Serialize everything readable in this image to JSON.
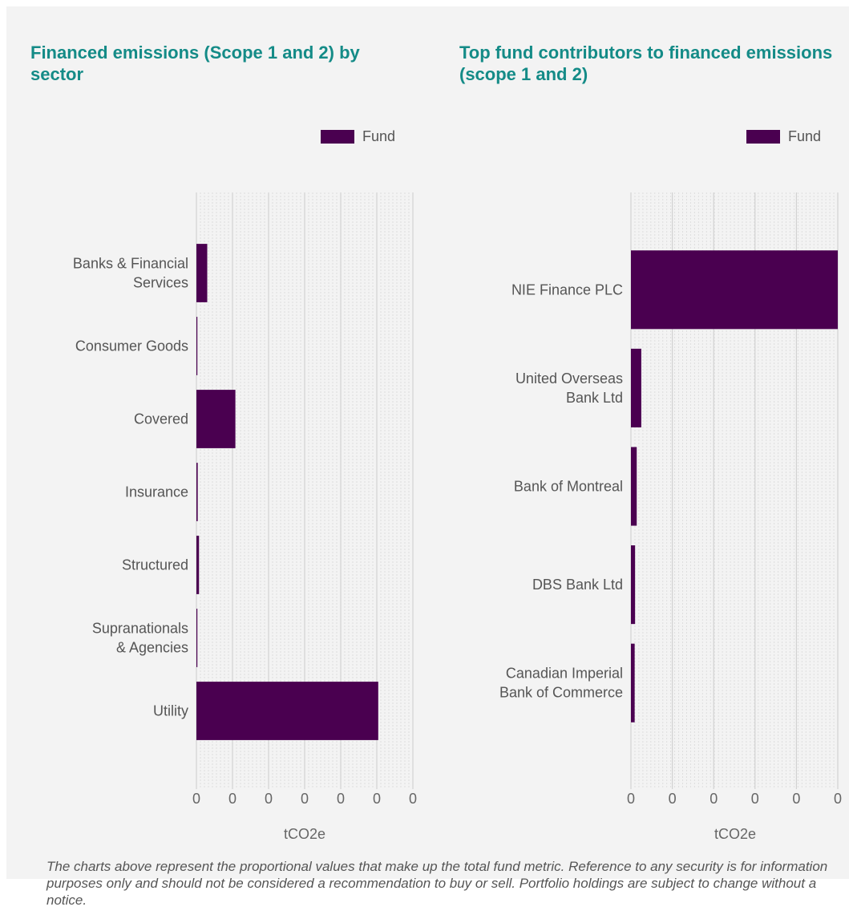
{
  "colors": {
    "fund": "#4a0050",
    "title": "#148b87",
    "panel_bg": "#f3f3f3",
    "grid": "#dedede"
  },
  "footnote": "The charts above represent the proportional values that make up the total fund metric. Reference to any security is for information purposes only and should not be considered a recommendation to buy or sell. Portfolio holdings are subject to change without a notice.",
  "chart_data": [
    {
      "type": "bar",
      "orientation": "horizontal",
      "title": "Financed emissions (Scope 1 and 2) by sector",
      "legend": [
        "Fund"
      ],
      "legend_position": "top-right",
      "categories": [
        [
          "Banks & Financial",
          "Services"
        ],
        [
          "Consumer Goods"
        ],
        [
          "Covered"
        ],
        [
          "Insurance"
        ],
        [
          "Structured"
        ],
        [
          "Supranationals",
          "& Agencies"
        ],
        [
          "Utility"
        ]
      ],
      "series": [
        {
          "name": "Fund",
          "values": [
            0.05,
            0.002,
            0.18,
            0.006,
            0.012,
            0.003,
            0.84
          ]
        }
      ],
      "xlim": [
        0,
        1
      ],
      "x_ticks": [
        "0",
        "0",
        "0",
        "0",
        "0",
        "0",
        "0"
      ],
      "xlabel": "tCO2e",
      "grid": true
    },
    {
      "type": "bar",
      "orientation": "horizontal",
      "title": "Top fund contributors to financed emissions (scope 1 and 2)",
      "legend": [
        "Fund"
      ],
      "legend_position": "top-right",
      "categories": [
        [
          "NIE Finance PLC"
        ],
        [
          "United Overseas",
          "Bank Ltd"
        ],
        [
          "Bank of Montreal"
        ],
        [
          "DBS Bank Ltd"
        ],
        [
          "Canadian Imperial",
          "Bank of Commerce"
        ]
      ],
      "series": [
        {
          "name": "Fund",
          "values": [
            1.0,
            0.05,
            0.028,
            0.02,
            0.018
          ]
        }
      ],
      "xlim": [
        0,
        1
      ],
      "x_ticks": [
        "0",
        "0",
        "0",
        "0",
        "0",
        "0"
      ],
      "xlabel": "tCO2e",
      "grid": true
    }
  ]
}
